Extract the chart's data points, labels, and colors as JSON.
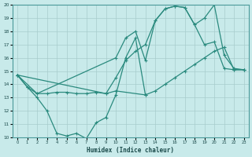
{
  "title": "",
  "xlabel": "Humidex (Indice chaleur)",
  "bg_color": "#c8eaea",
  "line_color": "#2a8a7e",
  "grid_color": "#a8cccc",
  "xlim": [
    -0.5,
    23.5
  ],
  "ylim": [
    10,
    20
  ],
  "xticks": [
    0,
    1,
    2,
    3,
    4,
    5,
    6,
    7,
    8,
    9,
    10,
    11,
    12,
    13,
    14,
    15,
    16,
    17,
    18,
    19,
    20,
    21,
    22,
    23
  ],
  "yticks": [
    10,
    11,
    12,
    13,
    14,
    15,
    16,
    17,
    18,
    19,
    20
  ],
  "line1_x": [
    0,
    1,
    2,
    3,
    4,
    5,
    6,
    7,
    8,
    9,
    10,
    11,
    12,
    13
  ],
  "line1_y": [
    14.7,
    13.8,
    13.0,
    12.0,
    10.3,
    10.1,
    10.3,
    9.9,
    11.1,
    11.5,
    13.2,
    16.0,
    17.5,
    13.2
  ],
  "line2_x": [
    0,
    1,
    2,
    3,
    4,
    5,
    6,
    7,
    8,
    9,
    10,
    13,
    14,
    15,
    16,
    17,
    18,
    19,
    20,
    21,
    22,
    23
  ],
  "line2_y": [
    14.7,
    13.8,
    13.3,
    13.3,
    13.4,
    13.4,
    13.3,
    13.3,
    13.4,
    13.3,
    13.5,
    13.2,
    13.5,
    14.0,
    14.5,
    15.0,
    15.5,
    16.0,
    16.5,
    16.8,
    15.1,
    15.1
  ],
  "line3_x": [
    0,
    2,
    10,
    11,
    12,
    13,
    14,
    15,
    16,
    17,
    18,
    19,
    20,
    21,
    22,
    23
  ],
  "line3_y": [
    14.7,
    13.3,
    16.0,
    17.5,
    18.0,
    15.8,
    18.8,
    19.7,
    19.9,
    19.8,
    18.5,
    19.0,
    20.0,
    16.2,
    15.2,
    15.1
  ],
  "line4_x": [
    0,
    9,
    10,
    11,
    12,
    13,
    14,
    15,
    16,
    17,
    18,
    19,
    20,
    21,
    22,
    23
  ],
  "line4_y": [
    14.7,
    13.3,
    14.5,
    15.8,
    16.5,
    17.0,
    18.8,
    19.7,
    19.9,
    19.8,
    18.5,
    17.0,
    17.2,
    15.2,
    15.1,
    15.1
  ]
}
